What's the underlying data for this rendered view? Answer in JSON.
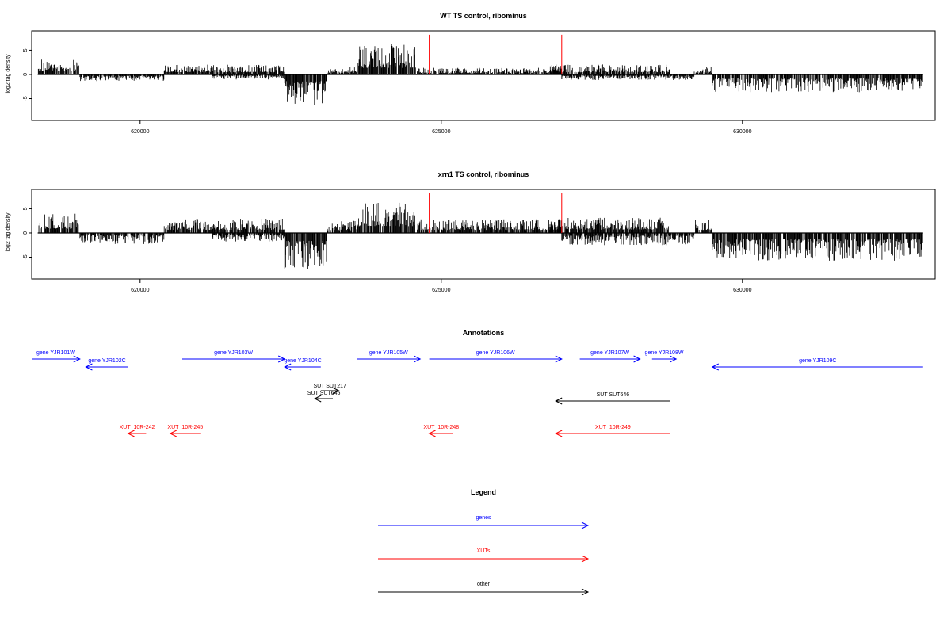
{
  "chart_data": [
    {
      "type": "bar",
      "title": "WT TS control, ribominus",
      "ylabel": "log2 tag density",
      "xlim": [
        618200,
        633200
      ],
      "ylim": [
        -9.5,
        9
      ],
      "x_ticks": [
        620000,
        625000,
        630000
      ],
      "y_ticks": [
        5,
        0,
        -5
      ],
      "markers": [
        624800,
        627000
      ],
      "marker_height": 8.2,
      "segments": [
        {
          "from": 618300,
          "to": 619000,
          "amp": 2.8,
          "dir": 1
        },
        {
          "from": 619000,
          "to": 620400,
          "amp": 1.2,
          "dir": -1
        },
        {
          "from": 620400,
          "to": 622400,
          "amp": 1.8,
          "dir": 1
        },
        {
          "from": 621200,
          "to": 622400,
          "amp": 0.9,
          "dir": -1
        },
        {
          "from": 622400,
          "to": 623100,
          "amp": 5.5,
          "dir": -1
        },
        {
          "from": 623100,
          "to": 623600,
          "amp": 1.4,
          "dir": 1
        },
        {
          "from": 623600,
          "to": 624600,
          "amp": 5.5,
          "dir": 1
        },
        {
          "from": 624600,
          "to": 627000,
          "amp": 1.2,
          "dir": 1
        },
        {
          "from": 626800,
          "to": 628800,
          "amp": 1.8,
          "dir": 1
        },
        {
          "from": 627000,
          "to": 629200,
          "amp": 1.0,
          "dir": -1
        },
        {
          "from": 629200,
          "to": 629500,
          "amp": 1.5,
          "dir": 1
        },
        {
          "from": 629500,
          "to": 633000,
          "amp": 3.2,
          "dir": -1
        }
      ]
    },
    {
      "type": "bar",
      "title": "xrn1 TS control, ribominus",
      "ylabel": "log2 tag density",
      "xlim": [
        618200,
        633200
      ],
      "ylim": [
        -9.5,
        9
      ],
      "x_ticks": [
        620000,
        625000,
        630000
      ],
      "y_ticks": [
        5,
        0,
        -5
      ],
      "markers": [
        624800,
        627000
      ],
      "marker_height": 8.2,
      "segments": [
        {
          "from": 618300,
          "to": 619000,
          "amp": 3.5,
          "dir": 1
        },
        {
          "from": 619000,
          "to": 620400,
          "amp": 2.0,
          "dir": -1
        },
        {
          "from": 620400,
          "to": 622400,
          "amp": 2.6,
          "dir": 1
        },
        {
          "from": 621200,
          "to": 622400,
          "amp": 1.6,
          "dir": -1
        },
        {
          "from": 622400,
          "to": 623100,
          "amp": 6.5,
          "dir": -1
        },
        {
          "from": 623100,
          "to": 623600,
          "amp": 2.2,
          "dir": 1
        },
        {
          "from": 623600,
          "to": 624600,
          "amp": 5.5,
          "dir": 1
        },
        {
          "from": 624600,
          "to": 627000,
          "amp": 2.5,
          "dir": 1
        },
        {
          "from": 626800,
          "to": 628800,
          "amp": 2.8,
          "dir": 1
        },
        {
          "from": 627000,
          "to": 629200,
          "amp": 2.2,
          "dir": -1
        },
        {
          "from": 629200,
          "to": 629500,
          "amp": 2.5,
          "dir": 1
        },
        {
          "from": 629500,
          "to": 633000,
          "amp": 5.0,
          "dir": -1
        }
      ]
    },
    {
      "type": "diagram",
      "title": "Annotations",
      "colors": {
        "genes": "#0000ff",
        "XUTs": "#ff0000",
        "other": "#000000"
      },
      "features": [
        {
          "label": "gene YJR101W",
          "type": "genes",
          "strand": "+",
          "start": 618200,
          "end": 619000,
          "row": 0
        },
        {
          "label": "gene YJR102C",
          "type": "genes",
          "strand": "-",
          "start": 619100,
          "end": 619800,
          "row": 1
        },
        {
          "label": "gene YJR103W",
          "type": "genes",
          "strand": "+",
          "start": 620700,
          "end": 622400,
          "row": 0
        },
        {
          "label": "gene YJR104C",
          "type": "genes",
          "strand": "-",
          "start": 622400,
          "end": 623000,
          "row": 1
        },
        {
          "label": "gene YJR105W",
          "type": "genes",
          "strand": "+",
          "start": 623600,
          "end": 624650,
          "row": 0
        },
        {
          "label": "gene YJR106W",
          "type": "genes",
          "strand": "+",
          "start": 624800,
          "end": 627000,
          "row": 0
        },
        {
          "label": "gene YJR107W",
          "type": "genes",
          "strand": "+",
          "start": 627300,
          "end": 628300,
          "row": 0
        },
        {
          "label": "gene YJR108W",
          "type": "genes",
          "strand": "+",
          "start": 628500,
          "end": 628900,
          "row": 0
        },
        {
          "label": "gene YJR109C",
          "type": "genes",
          "strand": "-",
          "start": 629500,
          "end": 633000,
          "row": 1
        },
        {
          "label": "SUT SUT217",
          "type": "other",
          "strand": "+",
          "start": 623000,
          "end": 623300,
          "row": 2
        },
        {
          "label": "SUT SUT645",
          "type": "other",
          "strand": "-",
          "start": 622900,
          "end": 623200,
          "row": 3
        },
        {
          "label": "SUT SUT646",
          "type": "other",
          "strand": "-",
          "start": 626900,
          "end": 628800,
          "row": 4
        },
        {
          "label": "XUT_10R-242",
          "type": "XUTs",
          "strand": "-",
          "start": 619800,
          "end": 620100,
          "row": 5
        },
        {
          "label": "XUT_10R-245",
          "type": "XUTs",
          "strand": "-",
          "start": 620500,
          "end": 621000,
          "row": 5
        },
        {
          "label": "XUT_10R-248",
          "type": "XUTs",
          "strand": "-",
          "start": 624800,
          "end": 625200,
          "row": 5
        },
        {
          "label": "XUT_10R-249",
          "type": "XUTs",
          "strand": "-",
          "start": 626900,
          "end": 628800,
          "row": 5
        }
      ]
    },
    {
      "type": "legend",
      "title": "Legend",
      "entries": [
        {
          "label": "genes",
          "color": "#0000ff"
        },
        {
          "label": "XUTs",
          "color": "#ff0000"
        },
        {
          "label": "other",
          "color": "#000000"
        }
      ]
    }
  ]
}
